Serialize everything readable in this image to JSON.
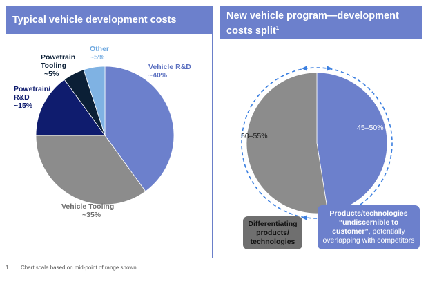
{
  "chart_data": [
    {
      "type": "pie",
      "title": "Typical vehicle development costs",
      "slices": [
        {
          "label": "Vehicle R&D",
          "value_label": "~40%",
          "value": 40,
          "color": "#6c80cc"
        },
        {
          "label": "Vehicle Tooling",
          "value_label": "~35%",
          "value": 35,
          "color": "#8c8c8c"
        },
        {
          "label": "Powetrain/ R&D",
          "value_label": "~15%",
          "value": 15,
          "color": "#0f1c6e"
        },
        {
          "label": "Powetrain Tooling",
          "value_label": "~5%",
          "value": 5,
          "color": "#0b1f36"
        },
        {
          "label": "Other",
          "value_label": "~5%",
          "value": 5,
          "color": "#7fb2e3"
        }
      ]
    },
    {
      "type": "pie",
      "title": "New vehicle program—development costs split",
      "title_superscript": "1",
      "slices": [
        {
          "label": "45–50%",
          "value": 47.5,
          "color": "#6c80cc"
        },
        {
          "label": "50–55%",
          "value": 52.5,
          "color": "#8c8c8c"
        }
      ]
    }
  ],
  "labels": {
    "left": {
      "vehicle_rd_1": "Vehicle R&D",
      "vehicle_rd_2": "~40%",
      "vehicle_tooling_1": "Vehicle Tooling",
      "vehicle_tooling_2": "~35%",
      "pt_rd_1": "Powetrain/",
      "pt_rd_2": "R&D",
      "pt_rd_3": "~15%",
      "pt_tool_1": "Powetrain",
      "pt_tool_2": "Tooling",
      "pt_tool_3": "~5%",
      "other_1": "Other",
      "other_2": "~5%"
    },
    "right": {
      "grey_value": "50–55%",
      "blue_value": "45–50%"
    }
  },
  "headers": {
    "left_title": "Typical vehicle development costs",
    "right_title": "New vehicle program—development costs split",
    "right_sup": "1"
  },
  "callouts": {
    "grey_1": "Differentiating",
    "grey_2": "products/",
    "grey_3": "technologies",
    "blue_1": "Products/technologies",
    "blue_2": "“undiscernible to",
    "blue_3": "customer”",
    "blue_4": ", potentially",
    "blue_5": "overlapping with competitors"
  },
  "footnote": {
    "number": "1",
    "text": "Chart scale based on mid-point of range shown"
  }
}
